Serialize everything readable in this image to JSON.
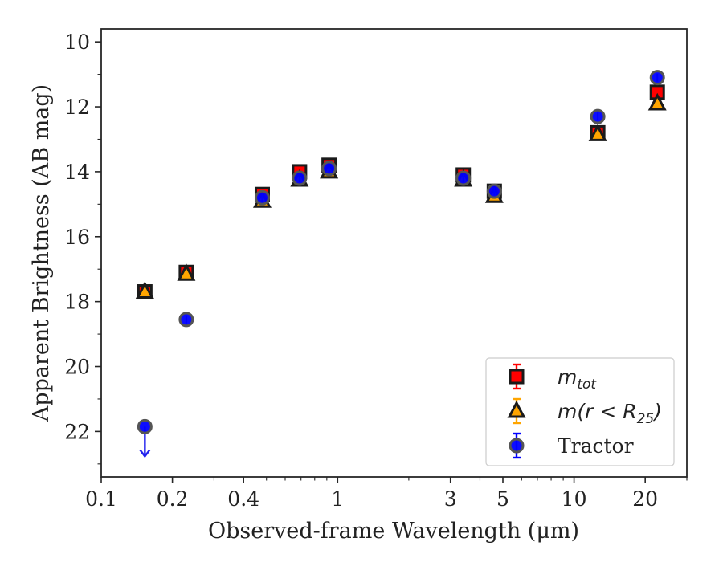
{
  "chart_data": {
    "type": "scatter",
    "xlabel": "Observed-frame Wavelength (μm)",
    "ylabel": "Apparent Brightness (AB mag)",
    "xscale": "log",
    "xlim": [
      0.1,
      30
    ],
    "ylim": [
      23.4,
      9.6
    ],
    "y_inverted": true,
    "grid": false,
    "legend_position": "bottom-right",
    "x_ticks": [
      0.1,
      0.2,
      0.4,
      1,
      3,
      5,
      10,
      20
    ],
    "x_tick_labels": [
      "0.1",
      "0.2",
      "0.4",
      "1",
      "3",
      "5",
      "10",
      "20"
    ],
    "y_ticks": [
      10,
      12,
      14,
      16,
      18,
      20,
      22
    ],
    "y_tick_labels": [
      "10",
      "12",
      "14",
      "16",
      "18",
      "20",
      "22"
    ],
    "series": [
      {
        "name": "m_tot",
        "legend_label": {
          "main": "m",
          "sub": "tot",
          "rest": ""
        },
        "marker": "square",
        "color": "#ff0000",
        "edge": "#1a1a1a",
        "x": [
          0.153,
          0.229,
          0.48,
          0.69,
          0.92,
          3.4,
          4.6,
          12.6,
          22.5
        ],
        "y": [
          17.7,
          17.1,
          14.7,
          14.0,
          13.8,
          14.1,
          14.6,
          12.8,
          11.55
        ]
      },
      {
        "name": "m(r < R_25)",
        "legend_label": {
          "main": "m(r < R",
          "sub": "25",
          "rest": ")"
        },
        "marker": "triangle",
        "color": "#ffa500",
        "edge": "#1a1a1a",
        "x": [
          0.153,
          0.229,
          0.48,
          0.69,
          0.92,
          3.4,
          4.6,
          12.6,
          22.5
        ],
        "y": [
          17.7,
          17.15,
          14.9,
          14.25,
          14.0,
          14.25,
          14.75,
          12.85,
          11.9
        ]
      },
      {
        "name": "Tractor",
        "legend_label": {
          "main": "Tractor",
          "sub": "",
          "rest": ""
        },
        "marker": "circle",
        "color": "#0000ff",
        "edge": "#555555",
        "x": [
          0.229,
          0.48,
          0.69,
          0.92,
          3.4,
          4.6,
          12.6,
          22.5
        ],
        "y": [
          18.55,
          14.8,
          14.2,
          13.9,
          14.2,
          14.6,
          12.3,
          11.1
        ]
      }
    ],
    "upper_limits": [
      {
        "series": "Tractor",
        "x": 0.153,
        "y": 21.85
      }
    ]
  }
}
